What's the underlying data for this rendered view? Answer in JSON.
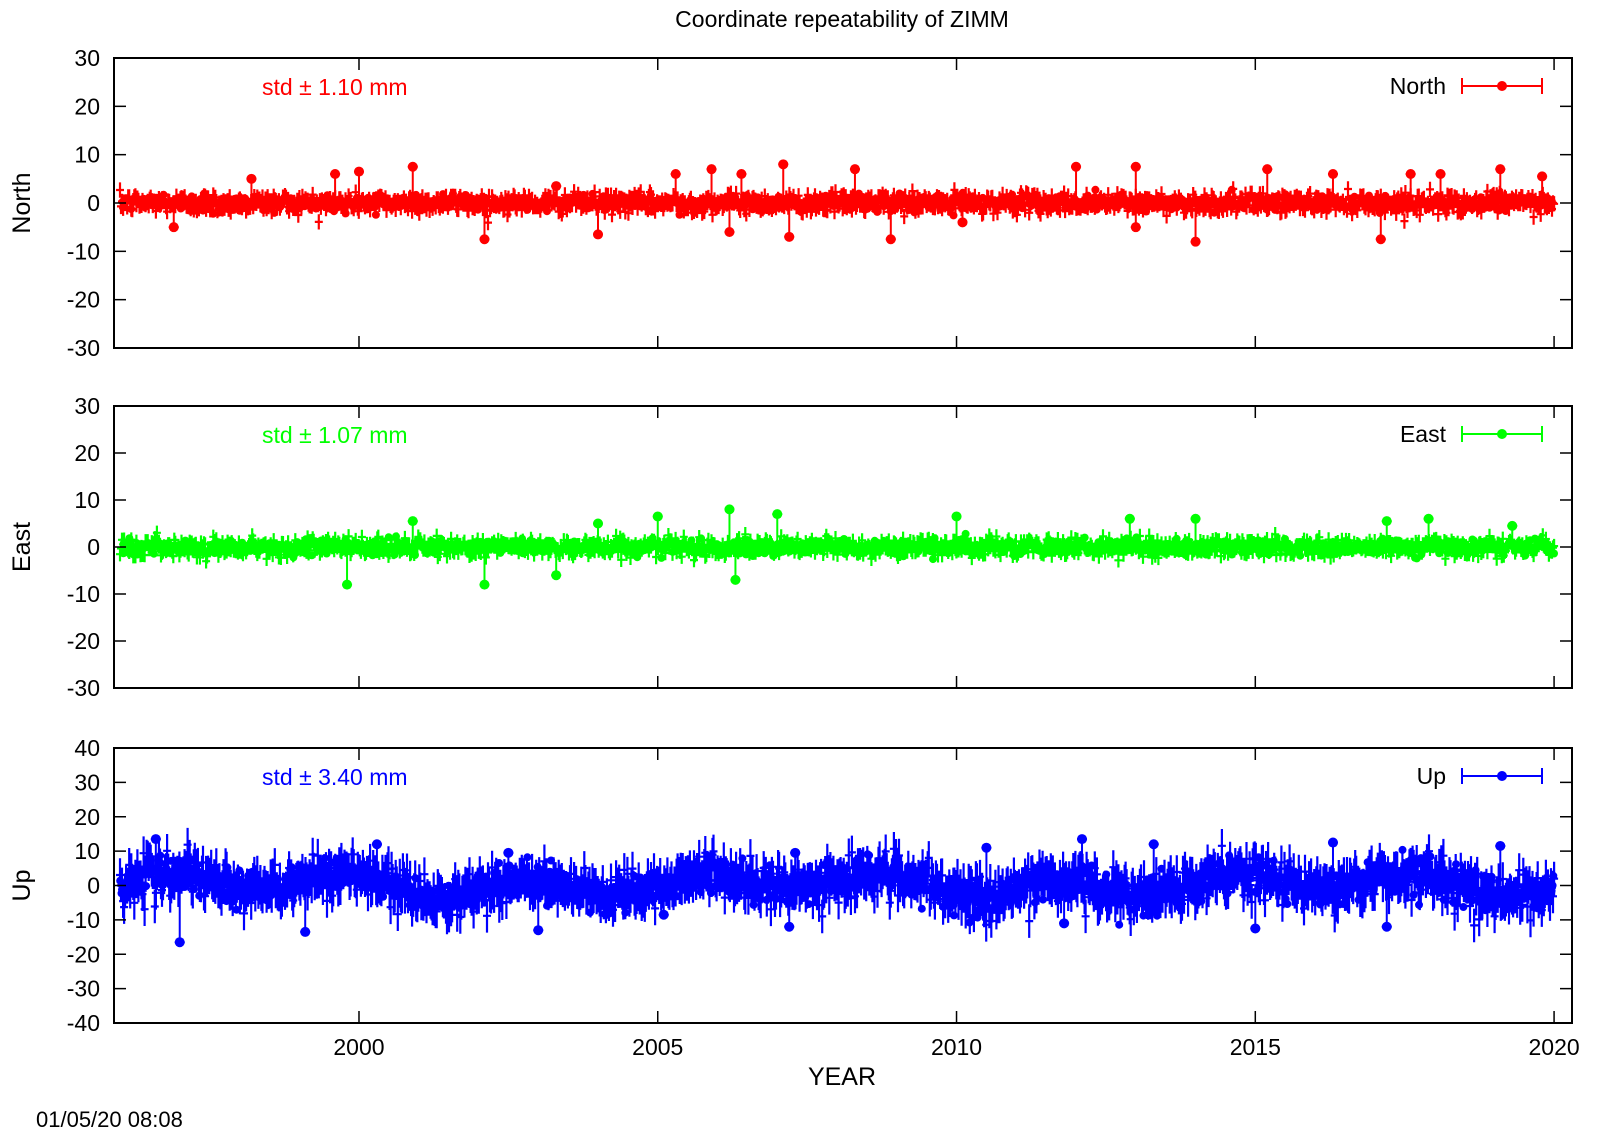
{
  "title": "Coordinate repeatability of ZIMM",
  "timestamp": "01/05/20 08:08",
  "chart_data": {
    "type": "scatter",
    "title": "Coordinate repeatability of ZIMM",
    "xlabel": "YEAR",
    "xlim": [
      1995.9,
      2020.3
    ],
    "x_ticks": [
      2000,
      2005,
      2010,
      2015,
      2020
    ],
    "x_range_data": [
      1996.0,
      2020.0
    ],
    "error_bars": true,
    "grid": false,
    "legend_placement": "top-right",
    "panels": [
      {
        "id": "north",
        "ylabel": "North",
        "ylim": [
          -30,
          30
        ],
        "y_ticks": [
          30,
          20,
          10,
          0,
          -10,
          -20,
          -30
        ],
        "std_label": "std ± 1.10 mm",
        "legend": "North",
        "color": "#ff0000",
        "std_mm": 1.1,
        "spikes": [
          {
            "x": 1996.9,
            "y": -5
          },
          {
            "x": 1998.2,
            "y": 5
          },
          {
            "x": 1999.6,
            "y": 6
          },
          {
            "x": 2000.0,
            "y": 6.5
          },
          {
            "x": 2000.9,
            "y": 7.5
          },
          {
            "x": 2002.1,
            "y": -7.5
          },
          {
            "x": 2003.3,
            "y": 3.5
          },
          {
            "x": 2004.0,
            "y": -6.5
          },
          {
            "x": 2005.3,
            "y": 6
          },
          {
            "x": 2005.9,
            "y": 7
          },
          {
            "x": 2006.2,
            "y": -6
          },
          {
            "x": 2006.4,
            "y": 6
          },
          {
            "x": 2007.1,
            "y": 8
          },
          {
            "x": 2007.2,
            "y": -7
          },
          {
            "x": 2008.3,
            "y": 7
          },
          {
            "x": 2008.9,
            "y": -7.5
          },
          {
            "x": 2010.1,
            "y": -4
          },
          {
            "x": 2012.0,
            "y": 7.5
          },
          {
            "x": 2013.0,
            "y": 7.5
          },
          {
            "x": 2013.0,
            "y": -5
          },
          {
            "x": 2014.0,
            "y": -8
          },
          {
            "x": 2015.2,
            "y": 7
          },
          {
            "x": 2016.3,
            "y": 6
          },
          {
            "x": 2017.1,
            "y": -7.5
          },
          {
            "x": 2017.6,
            "y": 6
          },
          {
            "x": 2018.1,
            "y": 6
          },
          {
            "x": 2019.1,
            "y": 7
          },
          {
            "x": 2019.8,
            "y": 5.5
          }
        ]
      },
      {
        "id": "east",
        "ylabel": "East",
        "ylim": [
          -30,
          30
        ],
        "y_ticks": [
          30,
          20,
          10,
          0,
          -10,
          -20,
          -30
        ],
        "std_label": "std ± 1.07 mm",
        "legend": "East",
        "color": "#00ff00",
        "std_mm": 1.07,
        "spikes": [
          {
            "x": 1999.8,
            "y": -8
          },
          {
            "x": 2000.9,
            "y": 5.5
          },
          {
            "x": 2002.1,
            "y": -8
          },
          {
            "x": 2003.3,
            "y": -6
          },
          {
            "x": 2004.0,
            "y": 5
          },
          {
            "x": 2005.0,
            "y": 6.5
          },
          {
            "x": 2006.2,
            "y": 8
          },
          {
            "x": 2006.3,
            "y": -7
          },
          {
            "x": 2007.0,
            "y": 7
          },
          {
            "x": 2010.0,
            "y": 6.5
          },
          {
            "x": 2012.9,
            "y": 6
          },
          {
            "x": 2014.0,
            "y": 6
          },
          {
            "x": 2017.2,
            "y": 5.5
          },
          {
            "x": 2017.9,
            "y": 6
          },
          {
            "x": 2019.3,
            "y": 4.5
          }
        ]
      },
      {
        "id": "up",
        "ylabel": "Up",
        "ylim": [
          -40,
          40
        ],
        "y_ticks": [
          40,
          30,
          20,
          10,
          0,
          -10,
          -20,
          -30,
          -40
        ],
        "std_label": "std ± 3.40 mm",
        "legend": "Up",
        "color": "#0000ff",
        "std_mm": 3.4,
        "spikes": [
          {
            "x": 1996.6,
            "y": 13.5
          },
          {
            "x": 1997.0,
            "y": -16.5
          },
          {
            "x": 1999.1,
            "y": -13.5
          },
          {
            "x": 2000.3,
            "y": 12
          },
          {
            "x": 2002.5,
            "y": 9.5
          },
          {
            "x": 2003.0,
            "y": -13
          },
          {
            "x": 2005.1,
            "y": -8.5
          },
          {
            "x": 2007.2,
            "y": -12
          },
          {
            "x": 2007.3,
            "y": 9.5
          },
          {
            "x": 2010.5,
            "y": 11
          },
          {
            "x": 2011.8,
            "y": -11
          },
          {
            "x": 2012.1,
            "y": 13.5
          },
          {
            "x": 2013.3,
            "y": 12
          },
          {
            "x": 2015.0,
            "y": -12.5
          },
          {
            "x": 2016.3,
            "y": 12.5
          },
          {
            "x": 2017.2,
            "y": -12
          },
          {
            "x": 2017.9,
            "y": 8.5
          },
          {
            "x": 2019.1,
            "y": 11.5
          }
        ]
      }
    ]
  }
}
